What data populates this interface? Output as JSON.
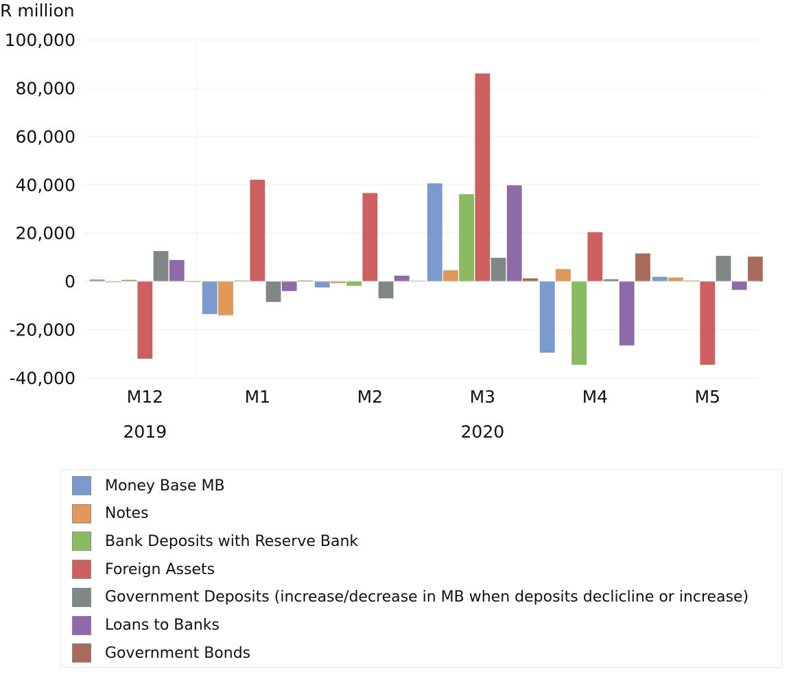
{
  "chart_data": {
    "type": "bar",
    "ylabel": "R million",
    "ylim": [
      -40000,
      100000
    ],
    "yticks": [
      -40000,
      -20000,
      0,
      20000,
      40000,
      60000,
      80000,
      100000
    ],
    "ytick_labels": [
      "-40,000",
      "-20,000",
      "0",
      "20,000",
      "40,000",
      "60,000",
      "80,000",
      "100,000"
    ],
    "categories": [
      "M12",
      "M1",
      "M2",
      "M3",
      "M4",
      "M5"
    ],
    "year_labels": [
      {
        "text": "2019",
        "category_index": 0
      },
      {
        "text": "2020",
        "category_index": 3
      }
    ],
    "grid": true,
    "legend_position": "bottom",
    "series": [
      {
        "name": "Money Base MB",
        "color": "#7b9acd",
        "values": [
          700,
          -13500,
          -2500,
          40500,
          -29500,
          1800
        ]
      },
      {
        "name": "Notes",
        "color": "#e1995a",
        "values": [
          -300,
          -14000,
          -700,
          4500,
          5000,
          1500
        ]
      },
      {
        "name": "Bank Deposits with Reserve Bank",
        "color": "#8bbb60",
        "values": [
          600,
          300,
          -1800,
          36000,
          -34500,
          300
        ]
      },
      {
        "name": "Foreign Assets",
        "color": "#cd5f60",
        "values": [
          -32000,
          42000,
          36500,
          86000,
          20300,
          -34500
        ]
      },
      {
        "name": "Government Deposits (increase/decrease  in MB  when deposits declicline or increase)",
        "color": "#808784",
        "values": [
          12500,
          -8500,
          -7000,
          9700,
          800,
          10500
        ]
      },
      {
        "name": "Loans to Banks",
        "color": "#8f6aa8",
        "values": [
          8800,
          -4000,
          2300,
          39700,
          -26500,
          -3500
        ]
      },
      {
        "name": "Government Bonds",
        "color": "#a86b5b",
        "values": [
          0,
          300,
          200,
          1200,
          11500,
          10200
        ]
      }
    ]
  }
}
